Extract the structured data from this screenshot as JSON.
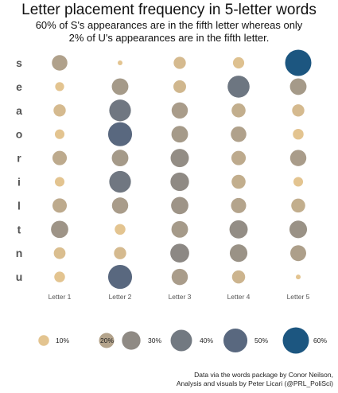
{
  "chart_data": {
    "type": "scatter",
    "title": "Letter placement frequency in 5-letter words",
    "subtitle": [
      "60% of S's appearances are in the fifth letter whereas only",
      "2% of U's appearances are in the fifth letter."
    ],
    "x_categories": [
      "Letter 1",
      "Letter 2",
      "Letter 3",
      "Letter 4",
      "Letter 5"
    ],
    "y_categories": [
      "s",
      "e",
      "a",
      "o",
      "r",
      "i",
      "l",
      "t",
      "n",
      "u"
    ],
    "values_percent": {
      "s": [
        21,
        2,
        13,
        11,
        60
      ],
      "e": [
        7,
        24,
        14,
        42,
        24
      ],
      "a": [
        13,
        41,
        23,
        17,
        13
      ],
      "o": [
        8,
        50,
        24,
        21,
        10
      ],
      "r": [
        18,
        24,
        29,
        18,
        23
      ],
      "i": [
        8,
        41,
        30,
        17,
        8
      ],
      "l": [
        18,
        23,
        26,
        20,
        17
      ],
      "t": [
        26,
        10,
        24,
        29,
        27
      ],
      "n": [
        12,
        13,
        31,
        27,
        22
      ],
      "u": [
        10,
        50,
        23,
        15,
        2
      ]
    },
    "legend": {
      "values": [
        10,
        20,
        30,
        40,
        50,
        60
      ],
      "labels": [
        "10%",
        "20%",
        "30%",
        "40%",
        "50%",
        "60%"
      ],
      "placement": "bottom"
    },
    "color_scale": [
      "#e3c490",
      "#b4a48c",
      "#8f8a84",
      "#727981",
      "#59687f",
      "#1c5680"
    ],
    "caption": [
      "Data via the words package by Conor Neilson,",
      "Analysis and visuals by Peter Licari (@PRL_PoliSci)"
    ]
  }
}
